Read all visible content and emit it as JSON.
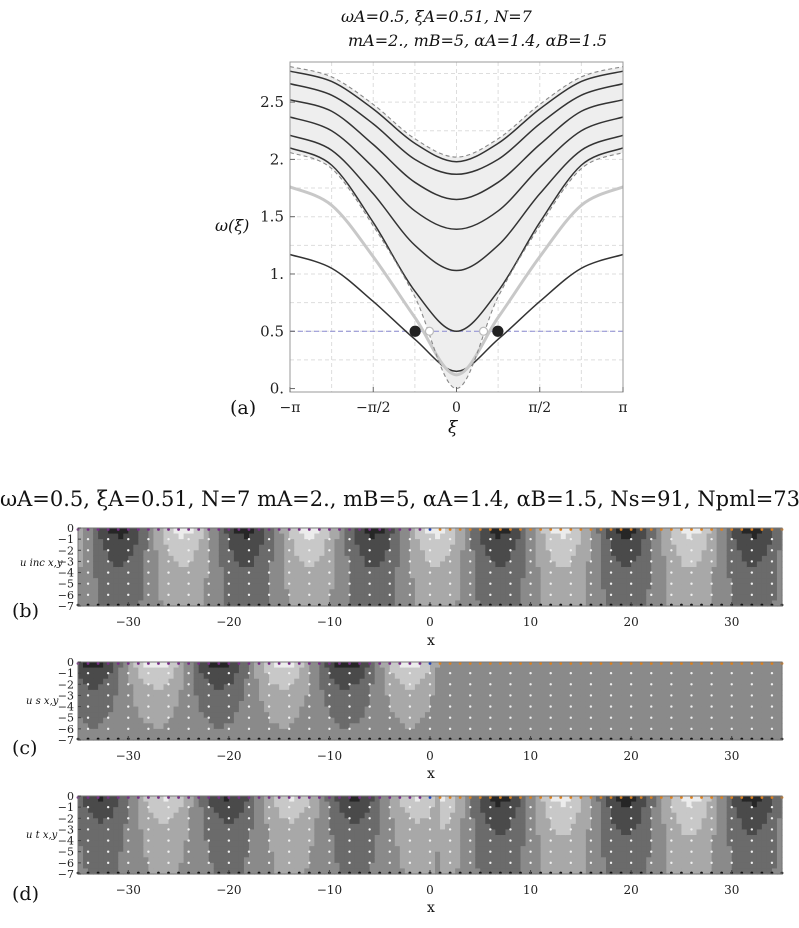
{
  "panel_a": {
    "label": "(a)",
    "title_line1": "ωA=0.5, ξA=0.51, N=7",
    "title_line2": "mA=2., mB=5, αA=1.4, αB=1.5",
    "ylabel": "ω(ξ)",
    "xlabel": "ξ"
  },
  "contour_title": "ωA=0.5, ξA=0.51, N=7 mA=2., mB=5, αA=1.4, αB=1.5, Ns=91, Npml=73",
  "panel_b": {
    "label": "(b)",
    "ylabel": "u inc x,y",
    "xlabel": "x"
  },
  "panel_c": {
    "label": "(c)",
    "ylabel": "u s x,y",
    "xlabel": "x"
  },
  "panel_d": {
    "label": "(d)",
    "ylabel": "u t x,y",
    "xlabel": "x"
  },
  "colors": {
    "frame": "#888888",
    "curve": "#333333",
    "band_fill": "#eeeeee",
    "light_curve": "#c8c8c8",
    "dashed": "#888888",
    "guide": "#8a8ad0",
    "marker": "#222222",
    "purple_dots": "#7b2a8b",
    "orange_dots": "#e0801a",
    "blue_dot": "#2040c0"
  },
  "chart_data": [
    {
      "type": "line",
      "title": "ωA=0.5, ξA=0.51, N=7 / mA=2., mB=5, αA=1.4, αB=1.5",
      "xlabel": "ξ",
      "ylabel": "ω(ξ)",
      "xlim": [
        -3.1416,
        3.1416
      ],
      "ylim": [
        0,
        2.85
      ],
      "x_ticks": [
        "−π",
        "−π/2",
        "0",
        "π/2",
        "π"
      ],
      "y_ticks": [
        "0.",
        "0.5",
        "1.",
        "1.5",
        "2.",
        "2.5"
      ],
      "grid": true,
      "series": [
        {
          "style": "solid-dark",
          "x": [
            -3.1416,
            -2.356,
            -1.571,
            -0.785,
            0,
            0.785,
            1.571,
            2.356,
            3.1416
          ],
          "y": [
            1.17,
            1.05,
            0.76,
            0.43,
            0.15,
            0.43,
            0.76,
            1.05,
            1.17
          ]
        },
        {
          "style": "solid-light",
          "x": [
            -3.1416,
            -2.356,
            -1.571,
            -0.785,
            0,
            0.785,
            1.571,
            2.356,
            3.1416
          ],
          "y": [
            1.76,
            1.6,
            1.15,
            0.62,
            0.12,
            0.62,
            1.15,
            1.6,
            1.76
          ]
        },
        {
          "style": "solid-dark",
          "x": [
            -3.1416,
            -2.356,
            -1.571,
            -0.785,
            0,
            0.785,
            1.571,
            2.356,
            3.1416
          ],
          "y": [
            2.1,
            1.95,
            1.45,
            0.85,
            0.5,
            0.85,
            1.45,
            1.95,
            2.1
          ]
        },
        {
          "style": "solid-dark",
          "x": [
            -3.1416,
            -2.356,
            -1.571,
            -0.785,
            0,
            0.785,
            1.571,
            2.356,
            3.1416
          ],
          "y": [
            2.21,
            2.08,
            1.7,
            1.25,
            1.03,
            1.25,
            1.7,
            2.08,
            2.21
          ]
        },
        {
          "style": "solid-dark",
          "x": [
            -3.1416,
            -2.356,
            -1.571,
            -0.785,
            0,
            0.785,
            1.571,
            2.356,
            3.1416
          ],
          "y": [
            2.37,
            2.25,
            1.93,
            1.55,
            1.39,
            1.55,
            1.93,
            2.25,
            2.37
          ]
        },
        {
          "style": "solid-dark",
          "x": [
            -3.1416,
            -2.356,
            -1.571,
            -0.785,
            0,
            0.785,
            1.571,
            2.356,
            3.1416
          ],
          "y": [
            2.52,
            2.42,
            2.13,
            1.8,
            1.65,
            1.8,
            2.13,
            2.42,
            2.52
          ]
        },
        {
          "style": "solid-dark",
          "x": [
            -3.1416,
            -2.356,
            -1.571,
            -0.785,
            0,
            0.785,
            1.571,
            2.356,
            3.1416
          ],
          "y": [
            2.66,
            2.56,
            2.31,
            2.0,
            1.87,
            2.0,
            2.31,
            2.56,
            2.66
          ]
        },
        {
          "style": "solid-dark",
          "x": [
            -3.1416,
            -2.356,
            -1.571,
            -0.785,
            0,
            0.785,
            1.571,
            2.356,
            3.1416
          ],
          "y": [
            2.77,
            2.68,
            2.44,
            2.14,
            1.98,
            2.14,
            2.44,
            2.68,
            2.77
          ]
        },
        {
          "style": "dashed",
          "x": [
            -3.1416,
            -2.356,
            -1.571,
            -0.785,
            0,
            0.785,
            1.571,
            2.356,
            3.1416
          ],
          "y": [
            2.81,
            2.72,
            2.48,
            2.18,
            2.02,
            2.18,
            2.48,
            2.72,
            2.81
          ]
        },
        {
          "style": "dashed",
          "x": [
            -3.1416,
            -2.356,
            -1.571,
            -0.785,
            0,
            0.785,
            1.571,
            2.356,
            3.1416
          ],
          "y": [
            2.06,
            1.92,
            1.42,
            0.8,
            0.0,
            0.8,
            1.42,
            1.92,
            2.06
          ]
        }
      ],
      "horizontal_line": 0.5,
      "markers": [
        {
          "x": -0.78,
          "y": 0.5,
          "fill": "dark"
        },
        {
          "x": 0.78,
          "y": 0.5,
          "fill": "dark"
        },
        {
          "x": -0.51,
          "y": 0.5,
          "fill": "light"
        },
        {
          "x": 0.51,
          "y": 0.5,
          "fill": "light"
        }
      ]
    },
    {
      "type": "heatmap",
      "xlim": [
        -35,
        35
      ],
      "ylim": [
        -7,
        0
      ],
      "x_ticks": [
        "−30",
        "−20",
        "−10",
        "0",
        "10",
        "20",
        "30"
      ],
      "y_ticks": [
        "0",
        "−1",
        "−2",
        "−3",
        "−4",
        "−5",
        "−6",
        "−7"
      ]
    }
  ]
}
